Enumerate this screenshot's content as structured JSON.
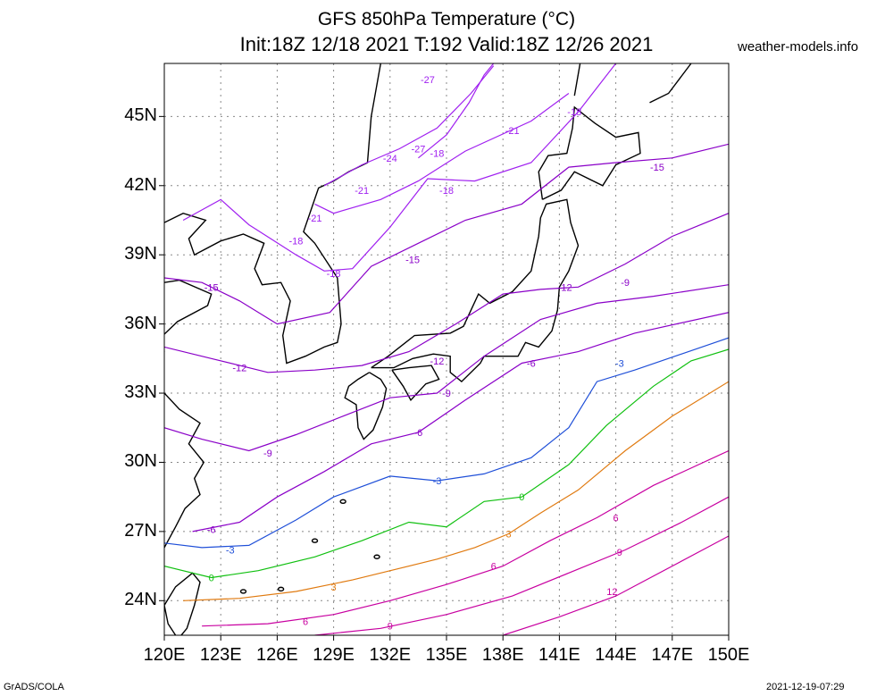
{
  "title": {
    "line1": "GFS 850hPa Temperature (°C)",
    "line2": "Init:18Z 12/18 2021 T:192 Valid:18Z 12/26 2021"
  },
  "credit": "weather-models.info",
  "footer": {
    "left": "GrADS/COLA",
    "right": "2021-12-19-07:29"
  },
  "map": {
    "region": "Japan / East Asia",
    "projection": "lat-lon",
    "lon_range": [
      120,
      150
    ],
    "lat_range": [
      22.5,
      47.3
    ],
    "grid": "dotted",
    "coastline_color": "#000000"
  },
  "axes": {
    "x_ticks": [
      "120E",
      "123E",
      "126E",
      "129E",
      "132E",
      "135E",
      "138E",
      "141E",
      "144E",
      "147E",
      "150E"
    ],
    "y_ticks": [
      "24N",
      "27N",
      "30N",
      "33N",
      "36N",
      "39N",
      "42N",
      "45N"
    ]
  },
  "contour_labels": [
    "-27",
    "-27",
    "-24",
    "-21",
    "-21",
    "-21",
    "-18",
    "-18",
    "-18",
    "-18",
    "-18",
    "-15",
    "-15",
    "-15",
    "-12",
    "-12",
    "-12",
    "-9",
    "-9",
    "-9",
    "-6",
    "-6",
    "-6",
    "-3",
    "-3",
    "-3",
    "0",
    "0",
    "3",
    "3",
    "6",
    "6",
    "6",
    "9",
    "9",
    "12"
  ],
  "contour_colors": {
    "-27": "#a020f0",
    "-24": "#a020f0",
    "-21": "#a020f0",
    "-18": "#a020f0",
    "-15": "#8a00c8",
    "-12": "#8a00c8",
    "-9": "#8a00c8",
    "-6": "#8a00c8",
    "-3": "#1f4fd8",
    "0": "#10c010",
    "3": "#e07a10",
    "6": "#c800a0",
    "9": "#c800a0",
    "12": "#c800a0"
  }
}
